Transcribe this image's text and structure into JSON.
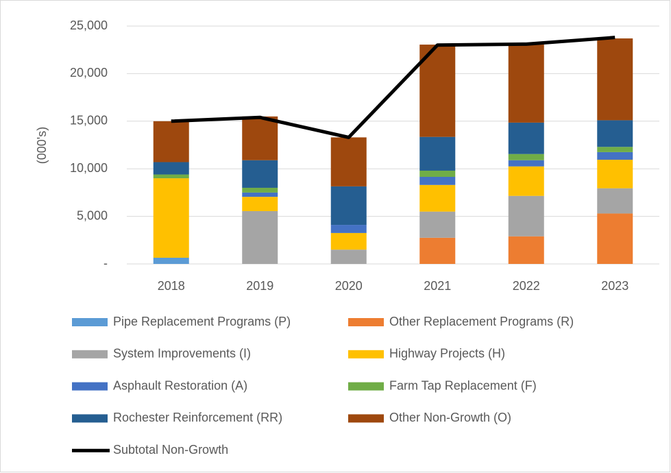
{
  "chart_data": {
    "type": "bar",
    "stacked": true,
    "ylabel": "(000's)",
    "categories": [
      "2018",
      "2019",
      "2020",
      "2021",
      "2022",
      "2023"
    ],
    "ylim": [
      0,
      25000
    ],
    "yticks": [
      {
        "value": 0,
        "label": "-"
      },
      {
        "value": 5000,
        "label": "5,000"
      },
      {
        "value": 10000,
        "label": "10,000"
      },
      {
        "value": 15000,
        "label": "15,000"
      },
      {
        "value": 20000,
        "label": "20,000"
      },
      {
        "value": 25000,
        "label": "25,000"
      }
    ],
    "grid": true,
    "series": [
      {
        "name": "Pipe Replacement Programs (P)",
        "color": "#5b9bd5",
        "values": [
          650,
          0,
          0,
          0,
          0,
          0
        ]
      },
      {
        "name": "Other Replacement Programs (R)",
        "color": "#ed7d31",
        "values": [
          0,
          0,
          0,
          2750,
          2900,
          5300
        ]
      },
      {
        "name": "System Improvements (I)",
        "color": "#a5a5a5",
        "values": [
          0,
          5550,
          1500,
          2750,
          4250,
          2650
        ]
      },
      {
        "name": "Highway Projects (H)",
        "color": "#ffc000",
        "values": [
          8350,
          1500,
          1750,
          2800,
          3100,
          3000
        ]
      },
      {
        "name": "Asphault Restoration (A)",
        "color": "#4472c4",
        "values": [
          0,
          450,
          850,
          850,
          650,
          800
        ]
      },
      {
        "name": "Farm Tap Replacement (F)",
        "color": "#70ad47",
        "values": [
          400,
          500,
          0,
          650,
          650,
          550
        ]
      },
      {
        "name": "Rochester Reinforcement (RR)",
        "color": "#255e91",
        "values": [
          1300,
          2900,
          4050,
          3550,
          3300,
          2800
        ]
      },
      {
        "name": "Other Non-Growth (O)",
        "color": "#9e480e",
        "values": [
          4300,
          4600,
          5150,
          9700,
          8200,
          8600
        ]
      },
      {
        "name": "Subtotal Non-Growth",
        "color": "#000000",
        "type": "line",
        "values": [
          15000,
          15400,
          13300,
          23000,
          23100,
          23800
        ]
      }
    ]
  }
}
